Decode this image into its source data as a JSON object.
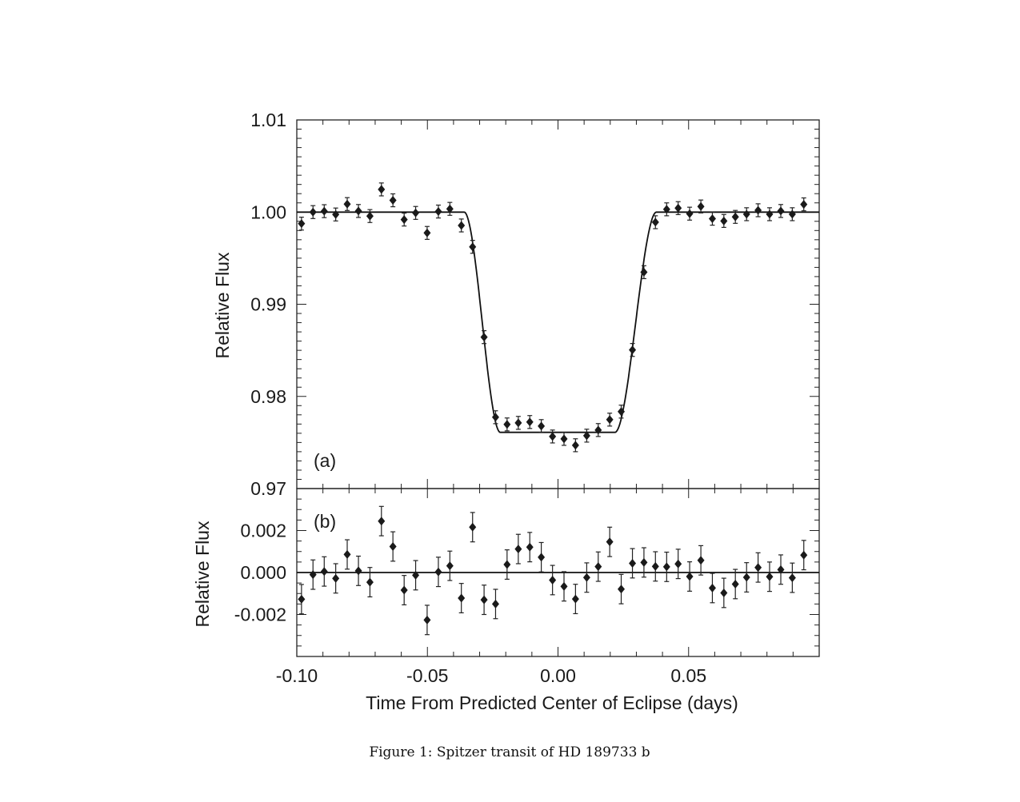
{
  "chart_data": [
    {
      "type": "scatter",
      "panel_label": "(a)",
      "ylabel": "Relative Flux",
      "xlabel": "Time From Predicted Center of Eclipse (days)",
      "xlim": [
        -0.1,
        0.1
      ],
      "ylim": [
        0.97,
        1.01
      ],
      "xticks": [
        -0.1,
        -0.05,
        0.0,
        0.05
      ],
      "xtick_labels": [
        "-0.10",
        "-0.05",
        "0.00",
        "0.05"
      ],
      "yticks": [
        1.01,
        1.0,
        0.99,
        0.98,
        0.97
      ],
      "ytick_labels": [
        "1.01",
        "1.00",
        "0.99",
        "0.98",
        "0.97"
      ],
      "x": [
        -0.0982,
        -0.0938,
        -0.0895,
        -0.0851,
        -0.0807,
        -0.0764,
        -0.072,
        -0.0676,
        -0.0632,
        -0.0589,
        -0.0545,
        -0.0501,
        -0.0458,
        -0.0414,
        -0.037,
        -0.0327,
        -0.0283,
        -0.0239,
        -0.0195,
        -0.0152,
        -0.0108,
        -0.0064,
        -0.0021,
        0.0023,
        0.0067,
        0.011,
        0.0154,
        0.0198,
        0.0242,
        0.0285,
        0.0329,
        0.0373,
        0.0416,
        0.046,
        0.0504,
        0.0547,
        0.0591,
        0.0635,
        0.0679,
        0.0722,
        0.0766,
        0.081,
        0.0853,
        0.0897,
        0.0941
      ],
      "y": [
        0.99875,
        1.0,
        1.0001,
        0.99974,
        1.00087,
        1.00012,
        0.99957,
        1.00246,
        1.00128,
        0.99919,
        0.99991,
        0.99774,
        1.00006,
        1.00035,
        0.99855,
        0.99623,
        0.98643,
        0.97774,
        0.97696,
        0.97713,
        0.97722,
        0.97678,
        0.97565,
        0.97539,
        0.9747,
        0.97574,
        0.97635,
        0.97748,
        0.97835,
        0.98504,
        0.99348,
        0.9989,
        1.0003,
        1.00043,
        0.99983,
        1.00061,
        0.99928,
        0.99904,
        0.99948,
        0.99977,
        1.0002,
        0.99977,
        1.00012,
        0.99977,
        1.00084
      ],
      "yerr": 0.0007,
      "model": {
        "type": "transit",
        "baseline": 1.0,
        "bottom": 0.9761,
        "t1": -0.0359,
        "t2": -0.0221,
        "t3": 0.0218,
        "t4": 0.0377
      }
    },
    {
      "type": "scatter",
      "panel_label": "(b)",
      "ylabel": "Relative Flux",
      "xlim": [
        -0.1,
        0.1
      ],
      "ylim": [
        -0.004,
        0.004
      ],
      "yticks": [
        0.002,
        0.0,
        -0.002
      ],
      "ytick_labels": [
        "0.002",
        "0.000",
        "-0.002"
      ],
      "x": [
        -0.0982,
        -0.0938,
        -0.0895,
        -0.0851,
        -0.0807,
        -0.0764,
        -0.072,
        -0.0676,
        -0.0632,
        -0.0589,
        -0.0545,
        -0.0501,
        -0.0458,
        -0.0414,
        -0.037,
        -0.0327,
        -0.0283,
        -0.0239,
        -0.0195,
        -0.0152,
        -0.0108,
        -0.0064,
        -0.0021,
        0.0023,
        0.0067,
        0.011,
        0.0154,
        0.0198,
        0.0242,
        0.0285,
        0.0329,
        0.0373,
        0.0416,
        0.046,
        0.0504,
        0.0547,
        0.0591,
        0.0635,
        0.0679,
        0.0722,
        0.0766,
        0.081,
        0.0853,
        0.0897,
        0.0941
      ],
      "y": [
        -0.00127,
        -0.0001,
        5e-05,
        -0.00028,
        0.00086,
        8e-05,
        -0.00046,
        0.00245,
        0.00124,
        -0.00084,
        -0.00013,
        -0.00226,
        3e-05,
        0.00032,
        -0.00122,
        0.00216,
        -0.0013,
        -0.0015,
        0.00038,
        0.00112,
        0.00121,
        0.00073,
        -0.00036,
        -0.00066,
        -0.00126,
        -0.00024,
        0.00028,
        0.00146,
        -0.00079,
        0.00044,
        0.00048,
        0.00029,
        0.00027,
        0.00041,
        -0.00019,
        0.00058,
        -0.00074,
        -0.00097,
        -0.00055,
        -0.00023,
        0.00024,
        -0.0002,
        0.00014,
        -0.00025,
        0.00083
      ],
      "yerr": 0.0007,
      "model": {
        "type": "zero-line",
        "value": 0.0
      }
    }
  ],
  "caption": "Figure 1: Spitzer transit of HD 189733 b"
}
